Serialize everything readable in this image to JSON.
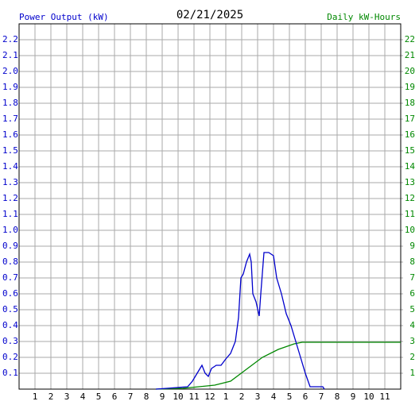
{
  "chart_data": {
    "type": "line",
    "title": "02/21/2025",
    "y_label": "Power Output (kW)",
    "y2_label": "Daily kW-Hours",
    "xlim": [
      0,
      24
    ],
    "ylim": [
      0,
      2.3
    ],
    "y2lim": [
      0,
      23
    ],
    "grid": true,
    "xticks": [
      1,
      2,
      3,
      4,
      5,
      6,
      7,
      8,
      9,
      10,
      11,
      12,
      {
        "value": 13,
        "label": "1"
      },
      {
        "value": 14,
        "label": "2"
      },
      {
        "value": 15,
        "label": "3"
      },
      {
        "value": 16,
        "label": "4"
      },
      {
        "value": 17,
        "label": "5"
      },
      {
        "value": 18,
        "label": "6"
      },
      {
        "value": 19,
        "label": "7"
      },
      {
        "value": 20,
        "label": "8"
      },
      {
        "value": 21,
        "label": "9"
      },
      {
        "value": 22,
        "label": "10"
      },
      {
        "value": 23,
        "label": "11"
      }
    ],
    "yticks": [
      0.1,
      0.2,
      0.3,
      0.4,
      0.5,
      0.6,
      0.7,
      0.8,
      0.9,
      {
        "value": 1,
        "label": "1.0"
      },
      1.1,
      1.2,
      1.3,
      1.4,
      1.5,
      1.6,
      1.7,
      1.8,
      1.9,
      {
        "value": 2,
        "label": "2.0"
      },
      2.1,
      2.2
    ],
    "y2ticks": [
      1,
      2,
      3,
      4,
      5,
      6,
      7,
      8,
      9,
      10,
      11,
      12,
      13,
      14,
      15,
      16,
      17,
      18,
      19,
      20,
      21,
      22
    ],
    "series": [
      {
        "name": "Power Output (kW)",
        "color": "#0000cc",
        "axis": "y",
        "x": [
          8.6,
          9.3,
          10.6,
          10.9,
          11.2,
          11.5,
          11.7,
          11.9,
          12.1,
          12.4,
          12.7,
          13.0,
          13.3,
          13.6,
          13.8,
          13.95,
          14.1,
          14.3,
          14.5,
          14.6,
          14.7,
          14.9,
          15.1,
          15.2,
          15.4,
          15.7,
          16.0,
          16.2,
          16.5,
          16.8,
          17.1,
          17.4,
          17.7,
          18.0,
          18.3,
          19.1,
          19.2
        ],
        "values": [
          0,
          0.005,
          0.015,
          0.05,
          0.1,
          0.15,
          0.1,
          0.08,
          0.13,
          0.15,
          0.15,
          0.19,
          0.225,
          0.3,
          0.45,
          0.7,
          0.725,
          0.8,
          0.85,
          0.8,
          0.6,
          0.55,
          0.46,
          0.6,
          0.86,
          0.86,
          0.84,
          0.7,
          0.6,
          0.475,
          0.4,
          0.3,
          0.2,
          0.1,
          0.015,
          0.015,
          0
        ]
      },
      {
        "name": "Daily kW-Hours",
        "color": "#008800",
        "axis": "y2",
        "x": [
          8.6,
          10.3,
          11.3,
          12.3,
          13.3,
          14.3,
          15.3,
          16.3,
          17.3,
          17.8,
          24
        ],
        "values": [
          0,
          0.05,
          0.15,
          0.25,
          0.5,
          1.25,
          2.0,
          2.5,
          2.85,
          2.95,
          2.95
        ]
      }
    ]
  }
}
